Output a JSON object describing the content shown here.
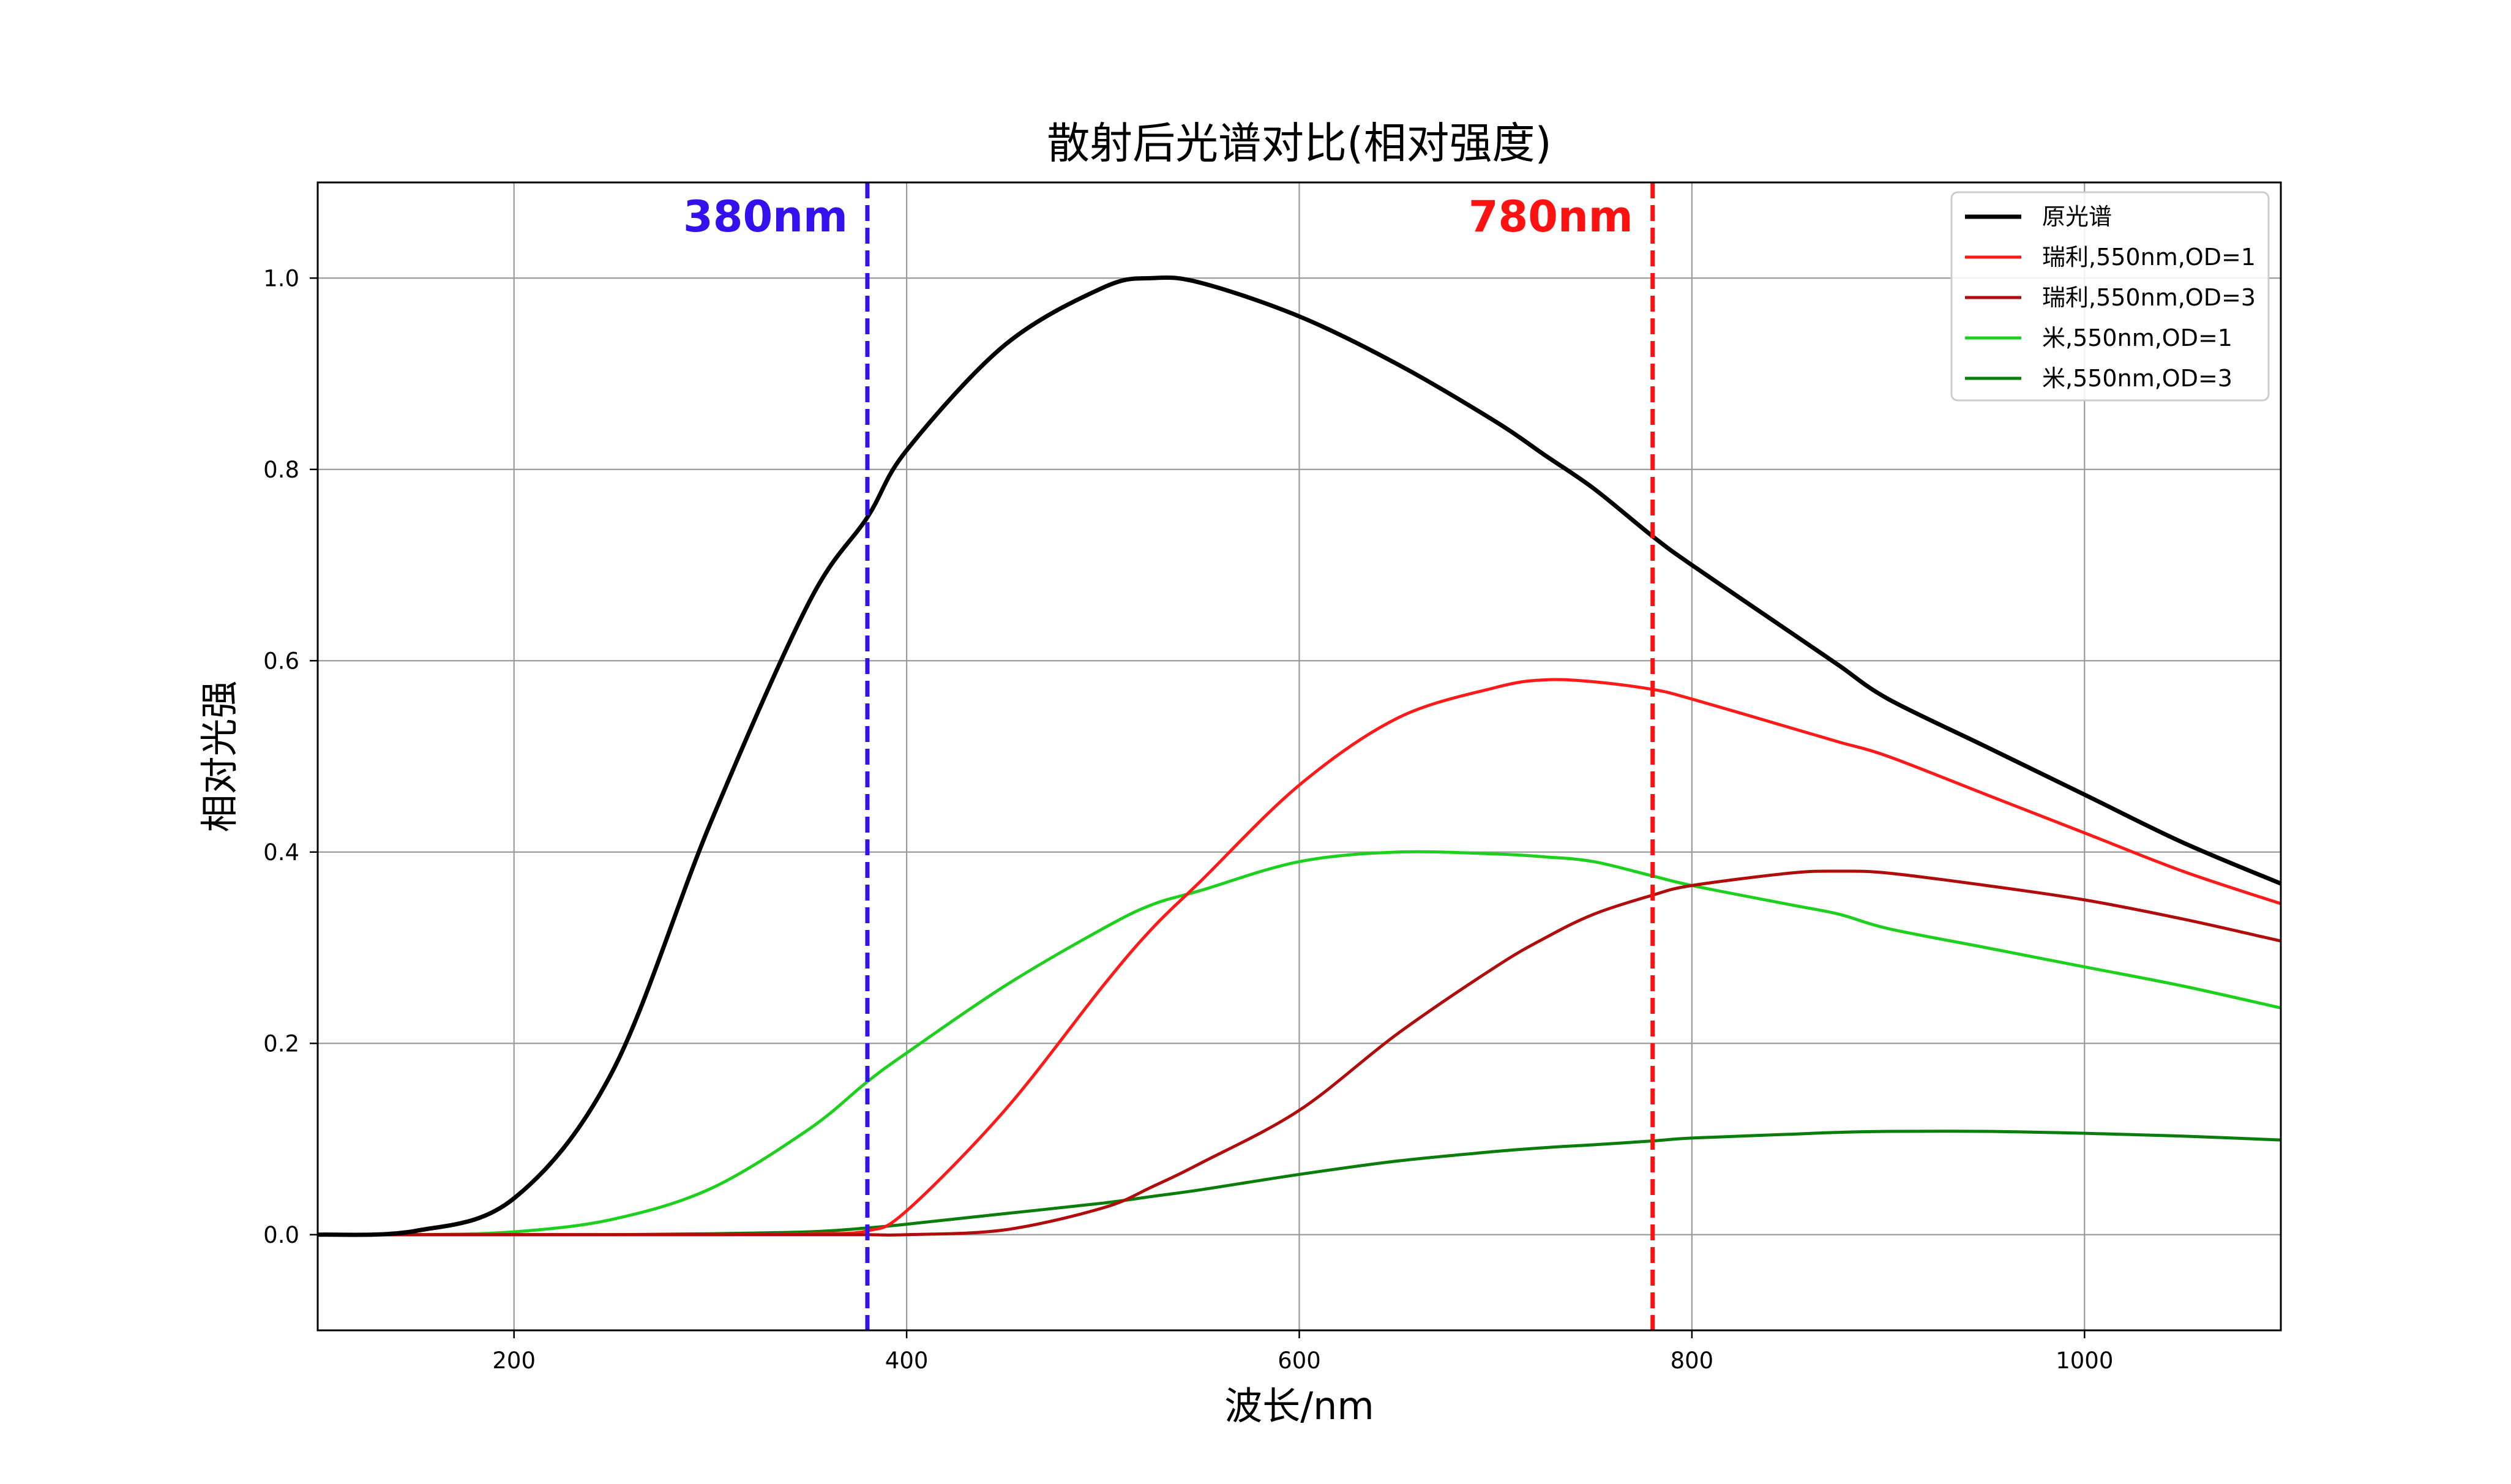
{
  "chart_data": {
    "type": "line",
    "title": "散射后光谱对比(相对强度)",
    "xlabel": "波长/nm",
    "ylabel": "相对光强",
    "xlim": [
      100,
      1100
    ],
    "ylim": [
      -0.1,
      1.1
    ],
    "xticks": [
      200,
      400,
      600,
      800,
      1000
    ],
    "yticks": [
      0.0,
      0.2,
      0.4,
      0.6,
      0.8,
      1.0
    ],
    "xtick_labels": [
      "200",
      "400",
      "600",
      "800",
      "1000"
    ],
    "ytick_labels": [
      "0.0",
      "0.2",
      "0.4",
      "0.6",
      "0.8",
      "1.0"
    ],
    "grid": true,
    "legend_position": "top-right",
    "x": [
      100,
      150,
      200,
      250,
      300,
      350,
      380,
      400,
      450,
      500,
      525,
      550,
      600,
      650,
      700,
      725,
      750,
      780,
      800,
      850,
      875,
      900,
      950,
      1000,
      1050,
      1100
    ],
    "series": [
      {
        "name": "原光谱",
        "color": "#000000",
        "width": "thick",
        "values": [
          0.0,
          0.004,
          0.038,
          0.17,
          0.43,
          0.66,
          0.75,
          0.82,
          0.93,
          0.99,
          1.0,
          0.995,
          0.96,
          0.91,
          0.85,
          0.815,
          0.78,
          0.73,
          0.7,
          0.63,
          0.595,
          0.56,
          0.51,
          0.46,
          0.41,
          0.367
        ]
      },
      {
        "name": "瑞利,550nm,OD=1",
        "color": "#ff1a1a",
        "width": "normal",
        "values": [
          0.0,
          0.0,
          0.0,
          0.0,
          0.0,
          0.001,
          0.004,
          0.025,
          0.13,
          0.26,
          0.32,
          0.37,
          0.47,
          0.54,
          0.572,
          0.58,
          0.578,
          0.57,
          0.56,
          0.53,
          0.515,
          0.5,
          0.46,
          0.42,
          0.38,
          0.346
        ]
      },
      {
        "name": "瑞利,550nm,OD=3",
        "color": "#b00c0c",
        "width": "normal",
        "values": [
          0.0,
          0.0,
          0.0,
          0.0,
          0.0,
          0.0,
          0.0,
          0.0,
          0.005,
          0.028,
          0.05,
          0.075,
          0.13,
          0.21,
          0.28,
          0.31,
          0.335,
          0.355,
          0.365,
          0.378,
          0.38,
          0.378,
          0.365,
          0.35,
          0.33,
          0.307
        ]
      },
      {
        "name": "米,550nm,OD=1",
        "color": "#1ed01e",
        "width": "normal",
        "values": [
          0.0,
          0.0,
          0.003,
          0.016,
          0.048,
          0.11,
          0.16,
          0.19,
          0.26,
          0.32,
          0.345,
          0.36,
          0.39,
          0.4,
          0.398,
          0.395,
          0.39,
          0.375,
          0.365,
          0.345,
          0.335,
          0.32,
          0.3,
          0.28,
          0.26,
          0.237
        ]
      },
      {
        "name": "米,550nm,OD=3",
        "color": "#0b7d0b",
        "width": "normal",
        "values": [
          0.0,
          0.0,
          0.0,
          0.0,
          0.001,
          0.003,
          0.007,
          0.011,
          0.022,
          0.033,
          0.04,
          0.047,
          0.063,
          0.077,
          0.087,
          0.091,
          0.094,
          0.098,
          0.101,
          0.105,
          0.107,
          0.108,
          0.108,
          0.106,
          0.103,
          0.099
        ]
      }
    ],
    "vlines": [
      {
        "x": 380,
        "label": "380nm",
        "color": "#3311ee",
        "style": "dashed"
      },
      {
        "x": 780,
        "label": "780nm",
        "color": "#ff1111",
        "style": "dashed"
      }
    ]
  }
}
